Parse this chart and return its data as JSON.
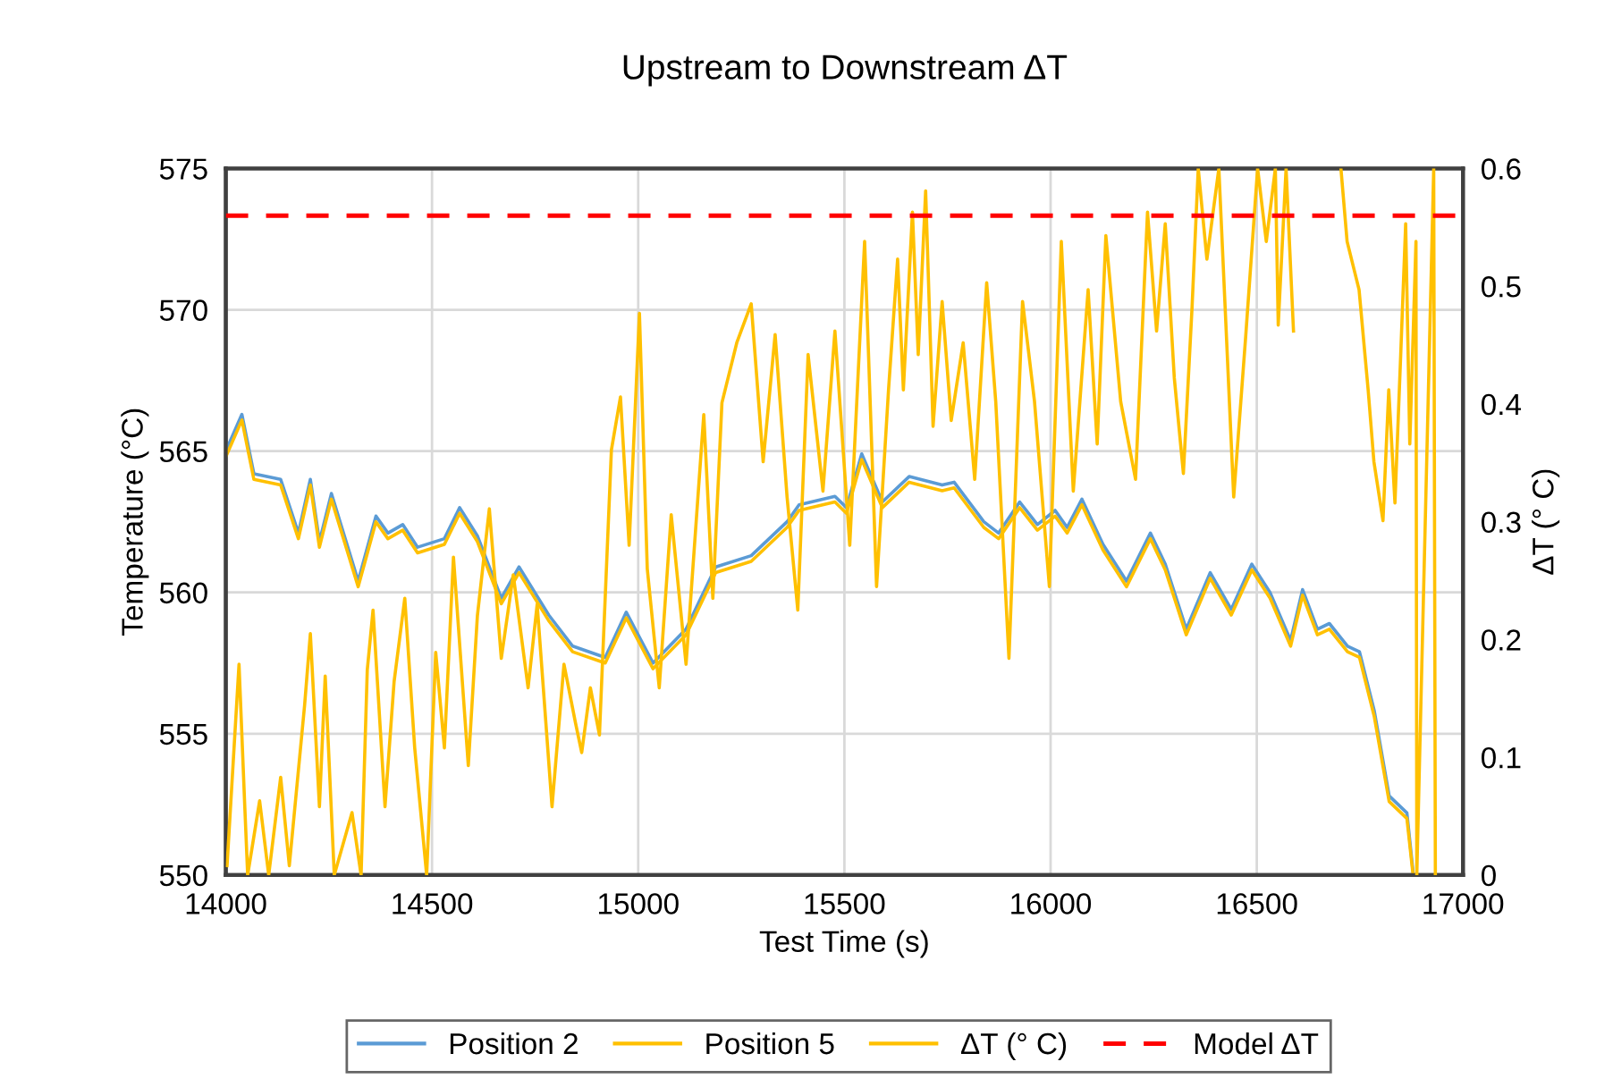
{
  "chart_data": {
    "type": "line",
    "title": "Upstream to Downstream ΔT",
    "xlabel": "Test Time (s)",
    "ylabel": "Temperature (°C)",
    "y2label": "ΔT (° C)",
    "xlim": [
      14000,
      17000
    ],
    "xticks": [
      14000,
      14500,
      15000,
      15500,
      16000,
      16500,
      17000
    ],
    "ylim": [
      550,
      575
    ],
    "yticks": [
      550,
      555,
      560,
      565,
      570,
      575
    ],
    "y2lim": [
      0,
      0.6
    ],
    "y2ticks": [
      0,
      0.1,
      0.2,
      0.3,
      0.4,
      0.5,
      0.6
    ],
    "grid": true,
    "legend": "bottom",
    "marker": "none",
    "line_style": "solid",
    "ref_lines": [
      {
        "axis": "y2",
        "value": 0.56,
        "label": "Model ΔT",
        "color": "#ff0000",
        "line_style": "dashed"
      }
    ],
    "series": [
      {
        "name": "Position 2",
        "color": "#5b9bd5",
        "x": [
          14000,
          14039,
          14068,
          14133,
          14176,
          14205,
          14227,
          14256,
          14321,
          14364,
          14393,
          14429,
          14465,
          14530,
          14567,
          14610,
          14668,
          14711,
          14783,
          14841,
          14920,
          14971,
          15036,
          15116,
          15188,
          15274,
          15361,
          15390,
          15477,
          15505,
          15542,
          15592,
          15657,
          15737,
          15766,
          15838,
          15874,
          15925,
          15968,
          16011,
          16040,
          16076,
          16127,
          16184,
          16242,
          16278,
          16329,
          16387,
          16438,
          16488,
          16532,
          16582,
          16611,
          16647,
          16676,
          16720,
          16749,
          16785,
          16821,
          16864,
          16879
        ],
        "values": [
          565.0,
          566.3,
          564.2,
          564.0,
          562.1,
          564.0,
          561.8,
          563.5,
          560.4,
          562.7,
          562.1,
          562.4,
          561.6,
          561.9,
          563.0,
          562.0,
          559.8,
          560.9,
          559.2,
          558.1,
          557.7,
          559.3,
          557.5,
          558.7,
          560.9,
          561.3,
          562.5,
          563.1,
          563.4,
          563.0,
          564.9,
          563.2,
          564.1,
          563.8,
          563.9,
          562.5,
          562.1,
          563.2,
          562.4,
          562.9,
          562.3,
          563.3,
          561.7,
          560.4,
          562.1,
          561.0,
          558.7,
          560.7,
          559.4,
          561.0,
          560.0,
          558.3,
          560.1,
          558.7,
          558.9,
          558.1,
          557.9,
          555.8,
          552.8,
          552.2,
          550.1
        ]
      },
      {
        "name": "Position 5",
        "color": "#ffc000",
        "x": [
          14000,
          14039,
          14068,
          14133,
          14176,
          14205,
          14227,
          14256,
          14321,
          14364,
          14393,
          14429,
          14465,
          14530,
          14567,
          14610,
          14668,
          14711,
          14783,
          14841,
          14920,
          14971,
          15036,
          15116,
          15188,
          15274,
          15361,
          15390,
          15477,
          15505,
          15542,
          15592,
          15657,
          15737,
          15766,
          15838,
          15874,
          15925,
          15968,
          16011,
          16040,
          16076,
          16127,
          16184,
          16242,
          16278,
          16329,
          16387,
          16438,
          16488,
          16532,
          16582,
          16611,
          16647,
          16676,
          16720,
          16749,
          16785,
          16821,
          16864,
          16879
        ],
        "values": [
          564.8,
          566.1,
          564.0,
          563.8,
          561.9,
          563.8,
          561.6,
          563.3,
          560.2,
          562.5,
          561.9,
          562.2,
          561.4,
          561.7,
          562.8,
          561.8,
          559.6,
          560.7,
          559.0,
          557.9,
          557.5,
          559.1,
          557.3,
          558.5,
          560.7,
          561.1,
          562.3,
          562.9,
          563.2,
          562.8,
          564.7,
          563.0,
          563.9,
          563.6,
          563.7,
          562.3,
          561.9,
          563.0,
          562.2,
          562.7,
          562.1,
          563.1,
          561.5,
          560.2,
          561.9,
          560.8,
          558.5,
          560.5,
          559.2,
          560.8,
          559.8,
          558.1,
          559.9,
          558.5,
          558.7,
          557.9,
          557.7,
          555.6,
          552.6,
          552.0,
          550.0
        ]
      },
      {
        "name": "ΔT (° C)",
        "color": "#ffc000",
        "axis": "y2",
        "x": [
          14003,
          14032,
          14046,
          14053,
          14082,
          14104,
          14133,
          14154,
          14191,
          14205,
          14227,
          14241,
          14263,
          14306,
          14328,
          14343,
          14357,
          14386,
          14408,
          14434,
          14458,
          14487,
          14509,
          14530,
          14552,
          14588,
          14610,
          14639,
          14668,
          14697,
          14733,
          14755,
          14791,
          14820,
          14848,
          14863,
          14884,
          14906,
          14935,
          14957,
          14978,
          15003,
          15022,
          15051,
          15080,
          15116,
          15159,
          15181,
          15203,
          15239,
          15274,
          15303,
          15332,
          15361,
          15387,
          15412,
          15448,
          15477,
          15513,
          15549,
          15578,
          15607,
          15629,
          15643,
          15665,
          15679,
          15697,
          15715,
          15737,
          15759,
          15788,
          15816,
          15845,
          15867,
          15899,
          15932,
          15961,
          15997,
          16026,
          16055,
          16091,
          16113,
          16134,
          16170,
          16206,
          16235,
          16257,
          16278,
          16300,
          16322,
          16343,
          16358,
          16379,
          16408,
          16444,
          16473,
          16502,
          16523,
          16545,
          16552,
          16571,
          16589,
          16630,
          16704,
          16719,
          16748,
          16770,
          16784,
          16806,
          16820,
          16835,
          16849,
          16861,
          16871,
          16886,
          16888,
          16929,
          16933
        ],
        "values": [
          0.008,
          0.179,
          0.058,
          0,
          0.063,
          0,
          0.083,
          0.008,
          0.144,
          0.205,
          0.058,
          0.169,
          0,
          0.053,
          0,
          0.174,
          0.225,
          0.058,
          0.164,
          0.235,
          0.108,
          0,
          0.189,
          0.108,
          0.27,
          0.093,
          0.22,
          0.311,
          0.184,
          0.255,
          0.159,
          0.23,
          0.058,
          0.179,
          0.129,
          0.104,
          0.159,
          0.119,
          0.361,
          0.406,
          0.28,
          0.477,
          0.26,
          0.159,
          0.306,
          0.179,
          0.391,
          0.235,
          0.401,
          0.452,
          0.485,
          0.351,
          0.459,
          0.321,
          0.225,
          0.442,
          0.326,
          0.462,
          0.28,
          0.538,
          0.245,
          0.412,
          0.523,
          0.412,
          0.563,
          0.442,
          0.581,
          0.381,
          0.487,
          0.386,
          0.452,
          0.336,
          0.503,
          0.402,
          0.184,
          0.487,
          0.402,
          0.245,
          0.538,
          0.326,
          0.497,
          0.366,
          0.543,
          0.402,
          0.336,
          0.563,
          0.462,
          0.553,
          0.422,
          0.341,
          0.482,
          0.6,
          0.523,
          0.6,
          0.321,
          0.457,
          0.6,
          0.538,
          0.6,
          0.467,
          0.6,
          0.462,
          null,
          0.6,
          0.538,
          0.497,
          0.412,
          0.351,
          0.301,
          0.412,
          0.316,
          0.442,
          0.553,
          0.366,
          0.538,
          0,
          0.6,
          0
        ]
      }
    ]
  }
}
